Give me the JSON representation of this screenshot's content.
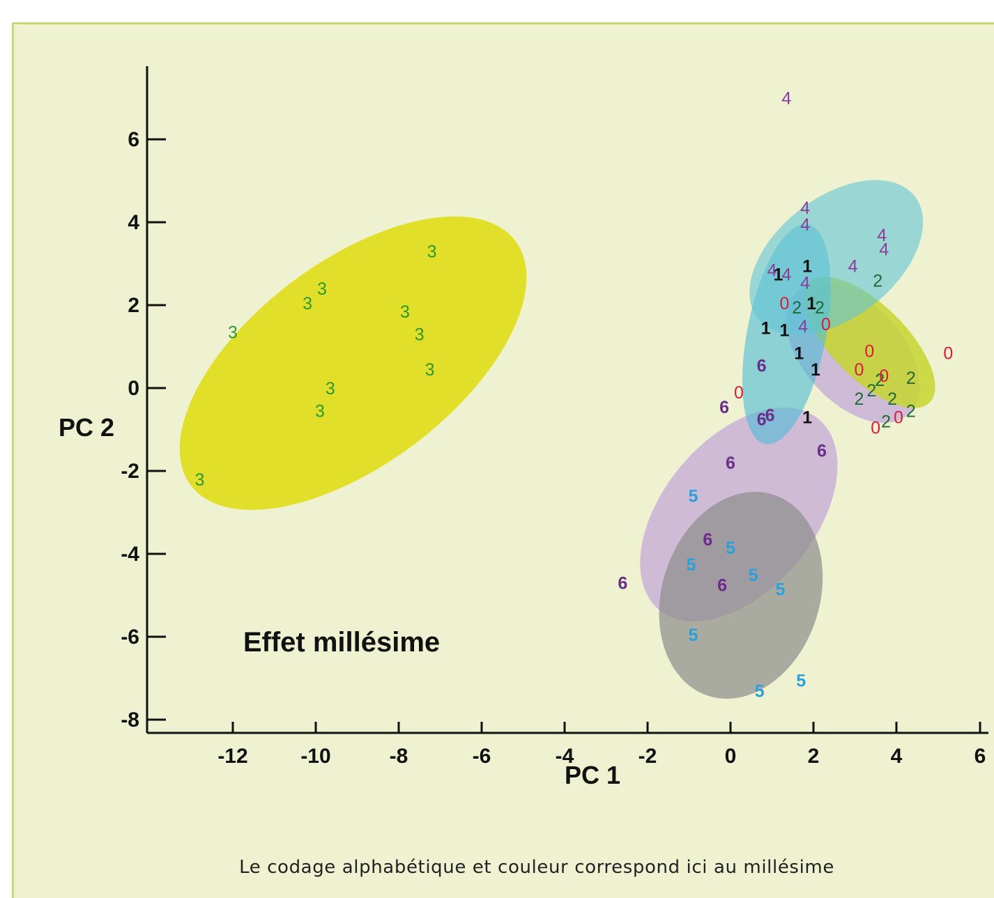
{
  "chart_data": {
    "type": "scatter",
    "xlabel": "PC 1",
    "ylabel": "PC 2",
    "xlim": [
      -13.8,
      6.1
    ],
    "ylim": [
      -8.3,
      7.7
    ],
    "xticks": [
      -12,
      -10,
      -8,
      -6,
      -4,
      -2,
      0,
      2,
      4,
      6
    ],
    "yticks": [
      6,
      4,
      2,
      0,
      -2,
      -4,
      -6,
      -8
    ],
    "annotation": "Effet millésime",
    "grid": false,
    "legend": "none",
    "ellipses": [
      {
        "group": "3",
        "color": "#e0dd1a",
        "opacity": 0.92,
        "cx": -9.1,
        "cy": 0.6,
        "rx": 4.9,
        "ry": 2.45,
        "angle_deg": 37
      },
      {
        "group": "6",
        "color": "#c4a8d6",
        "opacity": 0.75,
        "cx": 0.2,
        "cy": -3.05,
        "rx": 3.0,
        "ry": 1.82,
        "angle_deg": 50
      },
      {
        "group": "5",
        "color": "#8e8e8e",
        "opacity": 0.72,
        "cx": 0.25,
        "cy": -5.0,
        "rx": 1.9,
        "ry": 2.55,
        "angle_deg": -18
      },
      {
        "group": "0",
        "color": "#c8b2d8",
        "opacity": 0.85,
        "cx": 2.95,
        "cy": 0.85,
        "rx": 2.0,
        "ry": 1.2,
        "angle_deg": -48
      },
      {
        "group": "2",
        "color": "#c6d630",
        "opacity": 0.85,
        "cx": 3.35,
        "cy": 1.1,
        "rx": 2.05,
        "ry": 0.9,
        "angle_deg": -45
      },
      {
        "group": "1",
        "color": "#4cbbd6",
        "opacity": 0.6,
        "cx": 1.35,
        "cy": 1.3,
        "rx": 0.95,
        "ry": 2.7,
        "angle_deg": -11
      },
      {
        "group": "4",
        "color": "#60c4d6",
        "opacity": 0.6,
        "cx": 2.55,
        "cy": 3.15,
        "rx": 2.4,
        "ry": 1.45,
        "angle_deg": 38
      }
    ],
    "series": [
      {
        "label": "3",
        "color": "#2e9a2e",
        "bold": false,
        "points": [
          [
            -12.0,
            1.35
          ],
          [
            -10.2,
            2.05
          ],
          [
            -9.85,
            2.4
          ],
          [
            -7.85,
            1.85
          ],
          [
            -7.5,
            1.3
          ],
          [
            -7.2,
            3.3
          ],
          [
            -7.25,
            0.45
          ],
          [
            -9.65,
            0.0
          ],
          [
            -9.9,
            -0.55
          ],
          [
            -12.8,
            -2.2
          ]
        ]
      },
      {
        "label": "6",
        "color": "#6b2d8a",
        "bold": true,
        "points": [
          [
            0.75,
            0.55
          ],
          [
            -0.15,
            -0.45
          ],
          [
            0.75,
            -0.75
          ],
          [
            0.95,
            -0.65
          ],
          [
            2.2,
            -1.5
          ],
          [
            0.0,
            -1.8
          ],
          [
            -0.55,
            -3.65
          ],
          [
            -0.2,
            -4.75
          ],
          [
            -2.6,
            -4.7
          ]
        ]
      },
      {
        "label": "5",
        "color": "#2aa0dd",
        "bold": true,
        "points": [
          [
            -0.9,
            -2.6
          ],
          [
            0.0,
            -3.85
          ],
          [
            -0.95,
            -4.25
          ],
          [
            0.55,
            -4.5
          ],
          [
            1.2,
            -4.85
          ],
          [
            -0.9,
            -5.95
          ],
          [
            1.7,
            -7.05
          ],
          [
            0.7,
            -7.3
          ]
        ]
      },
      {
        "label": "4",
        "color": "#8a3c96",
        "bold": false,
        "points": [
          [
            1.35,
            7.0
          ],
          [
            1.8,
            4.35
          ],
          [
            1.8,
            3.95
          ],
          [
            3.65,
            3.7
          ],
          [
            3.7,
            3.35
          ],
          [
            2.95,
            2.95
          ],
          [
            1.0,
            2.85
          ],
          [
            1.35,
            2.75
          ],
          [
            1.8,
            2.55
          ],
          [
            1.75,
            1.5
          ]
        ]
      },
      {
        "label": "1",
        "color": "#111111",
        "bold": true,
        "points": [
          [
            1.15,
            2.75
          ],
          [
            1.85,
            2.95
          ],
          [
            1.95,
            2.05
          ],
          [
            0.85,
            1.45
          ],
          [
            1.3,
            1.4
          ],
          [
            1.65,
            0.85
          ],
          [
            2.05,
            0.45
          ],
          [
            1.85,
            -0.7
          ]
        ]
      },
      {
        "label": "2",
        "color": "#1f6a37",
        "bold": false,
        "points": [
          [
            3.55,
            2.6
          ],
          [
            1.6,
            1.95
          ],
          [
            2.15,
            1.95
          ],
          [
            4.35,
            0.25
          ],
          [
            3.6,
            0.2
          ],
          [
            3.4,
            -0.05
          ],
          [
            3.1,
            -0.25
          ],
          [
            3.9,
            -0.25
          ],
          [
            4.35,
            -0.55
          ],
          [
            3.75,
            -0.8
          ]
        ]
      },
      {
        "label": "0",
        "color": "#d81c3c",
        "bold": false,
        "points": [
          [
            1.3,
            2.05
          ],
          [
            2.3,
            1.55
          ],
          [
            3.35,
            0.9
          ],
          [
            3.1,
            0.45
          ],
          [
            3.7,
            0.3
          ],
          [
            5.25,
            0.85
          ],
          [
            0.2,
            -0.1
          ],
          [
            4.05,
            -0.7
          ],
          [
            3.5,
            -0.95
          ]
        ]
      }
    ]
  },
  "caption": "Le codage alphabétique et couleur correspond ici au millésime"
}
